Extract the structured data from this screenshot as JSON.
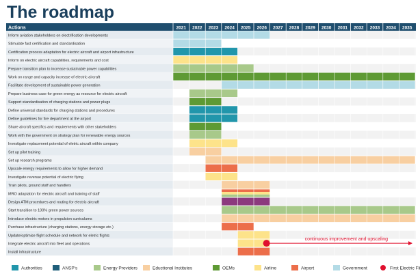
{
  "title": "The roadmap",
  "chart_data": {
    "type": "table",
    "title": "The roadmap",
    "header_label": "Actions",
    "years": [
      2021,
      2022,
      2023,
      2024,
      2025,
      2026,
      2027,
      2028,
      2029,
      2030,
      2031,
      2032,
      2033,
      2034,
      2035
    ],
    "colors": {
      "Authorities": "#2196ab",
      "ANSP's": "#1f5e7a",
      "Energy Providers": "#a8c98a",
      "Educational Institutes": "#f8cfa1",
      "OEMs": "#5e9a34",
      "Airline": "#fde38a",
      "Airport": "#ec6e4a",
      "Government": "#b3dbe6",
      "Purple": "#8c3a7e"
    },
    "actions": [
      {
        "label": "Inform aviation stakeholders on electrification developments",
        "bars": [
          [
            "Government",
            2021,
            2026
          ]
        ]
      },
      {
        "label": "Stimulate fast certification and standardisation",
        "bars": [
          [
            "Government",
            2021,
            2023
          ]
        ]
      },
      {
        "label": "Certification process adaptation for electric aircraft and airport infrastructure",
        "bars": [
          [
            "Authorities",
            2021,
            2024
          ]
        ]
      },
      {
        "label": "Inform on electric aircraft capabilities, requirements and cost",
        "bars": [
          [
            "Airline",
            2021,
            2024
          ]
        ]
      },
      {
        "label": "Prepare transition plan to increase sustainable power capabilities",
        "bars": [
          [
            "Energy Providers",
            2021,
            2025
          ]
        ]
      },
      {
        "label": "Work on range and capacity increase of electric aircraft",
        "bars": [
          [
            "OEMs",
            2021,
            2035
          ]
        ]
      },
      {
        "label": "Facilitate development of sustainable power generation",
        "bars": [
          [
            "Government",
            2024,
            2035
          ]
        ]
      },
      {
        "label": "Prepare business case for green energy as resource for electric aircraft",
        "bars": [
          [
            "Energy Providers",
            2022,
            2024
          ]
        ]
      },
      {
        "label": "Support standardisation of charging stations and power plugs",
        "bars": [
          [
            "OEMs",
            2022,
            2023
          ]
        ]
      },
      {
        "label": "Define universal standards for charging stations and procedures",
        "bars": [
          [
            "Authorities",
            2022,
            2024
          ]
        ]
      },
      {
        "label": "Define guidelines for fire department at the airport",
        "bars": [
          [
            "Authorities",
            2022,
            2024
          ]
        ]
      },
      {
        "label": "Share aircraft specifics and requirements with other stakeholders",
        "bars": [
          [
            "OEMs",
            2022,
            2023
          ]
        ]
      },
      {
        "label": "Work with the government on strategy plan for renewable energy sources",
        "bars": [
          [
            "Energy Providers",
            2022,
            2023
          ]
        ]
      },
      {
        "label": "Investigate replacement potential of eletric aircraft within company",
        "bars": [
          [
            "Airline",
            2022,
            2024
          ]
        ]
      },
      {
        "label": "Set up pilot training",
        "bars": [
          [
            "Educational Institutes",
            2022,
            2023
          ]
        ]
      },
      {
        "label": "Set up research programs",
        "bars": [
          [
            "Educational Institutes",
            2023,
            2035
          ]
        ]
      },
      {
        "label": "Upscale energy requirements to allow for higher demand",
        "bars": [
          [
            "Airport",
            2023,
            2024
          ]
        ]
      },
      {
        "label": "Investigate revenue potential of electric flying",
        "bars": [
          [
            "Airline",
            2023,
            2024
          ]
        ]
      },
      {
        "label": "Train pilots, ground staff and handlers",
        "bars": [
          [
            "Educational Institutes",
            2024,
            2026
          ]
        ]
      },
      {
        "label": "MRO adaptation for electric aircraft and training of staff",
        "bars": [
          [
            "Airport",
            2024,
            2026
          ],
          [
            "Airline",
            2024,
            2026
          ],
          [
            "Energy Providers",
            2024,
            2026
          ]
        ]
      },
      {
        "label": "Design ATM procedures and routing for electric aircraft",
        "bars": [
          [
            "Purple",
            2024,
            2026
          ]
        ]
      },
      {
        "label": "Start transition to 100% green power sources",
        "bars": [
          [
            "Energy Providers",
            2024,
            2035
          ]
        ]
      },
      {
        "label": "Introduce electric motors in propulsion curriculums",
        "bars": [
          [
            "Educational Institutes",
            2024,
            2035
          ]
        ]
      },
      {
        "label": "Purchase infrastructure (charging stations, energy storage etc.)",
        "bars": [
          [
            "Airport",
            2024,
            2025
          ]
        ]
      },
      {
        "label": "Update/optimise flight schedule and network for eletric flights",
        "bars": [
          [
            "Airline",
            2025,
            2026
          ]
        ]
      },
      {
        "label": "Integrate electric aircraft into fleet and operations",
        "bars": [
          [
            "Airline",
            2025,
            2026
          ]
        ]
      },
      {
        "label": "Install infrastructure",
        "bars": [
          [
            "Airport",
            2025,
            2026
          ]
        ]
      }
    ],
    "milestone": {
      "label": "continuous improvement  and upscaling",
      "row": 25,
      "start_year": 2027,
      "end_year": 2035,
      "color": "#e0102e"
    },
    "legend": [
      {
        "label": "Authorities",
        "key": "Authorities"
      },
      {
        "label": "ANSP's",
        "key": "ANSP's"
      },
      {
        "label": "Energy Providers",
        "key": "Energy Providers"
      },
      {
        "label": "Eductional Institutes",
        "key": "Educational Institutes"
      },
      {
        "label": "OEMs",
        "key": "OEMs"
      },
      {
        "label": "Airline",
        "key": "Airline"
      },
      {
        "label": "Airport",
        "key": "Airport"
      },
      {
        "label": "Government",
        "key": "Government"
      },
      {
        "label": "First Electric Flight",
        "key": "milestone"
      }
    ]
  }
}
